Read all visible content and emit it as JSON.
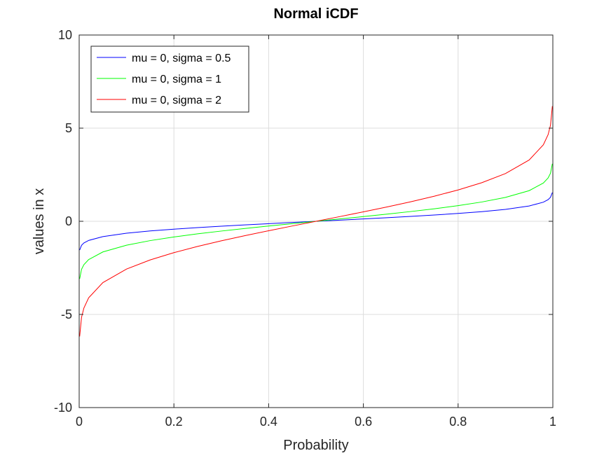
{
  "chart_data": {
    "type": "line",
    "title": "Normal iCDF",
    "xlabel": "Probability",
    "ylabel": "values in x",
    "xlim": [
      0,
      1
    ],
    "ylim": [
      -10,
      10
    ],
    "xticks": [
      "0",
      "0.2",
      "0.4",
      "0.6",
      "0.8",
      "1"
    ],
    "yticks": [
      "-10",
      "-5",
      "0",
      "5",
      "10"
    ],
    "grid": true,
    "legend_position": "top-left",
    "x": [
      0.001,
      0.005,
      0.01,
      0.02,
      0.05,
      0.1,
      0.15,
      0.2,
      0.25,
      0.3,
      0.35,
      0.4,
      0.45,
      0.5,
      0.55,
      0.6,
      0.65,
      0.7,
      0.75,
      0.8,
      0.85,
      0.9,
      0.95,
      0.98,
      0.99,
      0.995,
      0.999
    ],
    "series": [
      {
        "name": "mu = 0, sigma = 0.5",
        "color": "#0000ff",
        "values": [
          -1.545,
          -1.288,
          -1.163,
          -1.027,
          -0.822,
          -0.641,
          -0.518,
          -0.421,
          -0.337,
          -0.262,
          -0.193,
          -0.127,
          -0.063,
          0,
          0.063,
          0.127,
          0.193,
          0.262,
          0.337,
          0.421,
          0.518,
          0.641,
          0.822,
          1.027,
          1.163,
          1.288,
          1.545
        ]
      },
      {
        "name": "mu = 0, sigma = 1",
        "color": "#00ff00",
        "values": [
          -3.09,
          -2.576,
          -2.326,
          -2.054,
          -1.645,
          -1.282,
          -1.036,
          -0.842,
          -0.674,
          -0.524,
          -0.385,
          -0.253,
          -0.126,
          0,
          0.126,
          0.253,
          0.385,
          0.524,
          0.674,
          0.842,
          1.036,
          1.282,
          1.645,
          2.054,
          2.326,
          2.576,
          3.09
        ]
      },
      {
        "name": "mu = 0, sigma = 2",
        "color": "#ff0000",
        "values": [
          -6.18,
          -5.152,
          -4.653,
          -4.107,
          -3.29,
          -2.563,
          -2.073,
          -1.683,
          -1.349,
          -1.049,
          -0.771,
          -0.507,
          -0.251,
          0,
          0.251,
          0.507,
          0.771,
          1.049,
          1.349,
          1.683,
          2.073,
          2.563,
          3.29,
          4.107,
          4.653,
          5.152,
          6.18
        ]
      }
    ]
  }
}
